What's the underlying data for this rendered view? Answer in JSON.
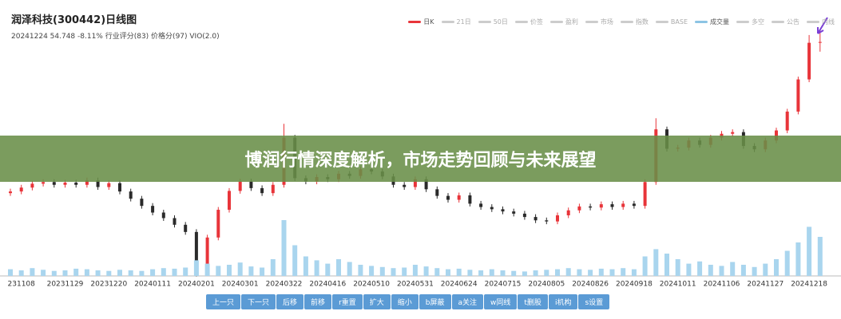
{
  "header": {
    "title": "润泽科技(300442)日线图",
    "subtitle": "20241224 54.748 -8.11% 行业评分(83) 价格分(97) VIO(2.0)"
  },
  "legend": [
    {
      "name": "日K",
      "color": "#e8353a"
    },
    {
      "name": "21日",
      "color": "#cccccc"
    },
    {
      "name": "50日",
      "color": "#cccccc"
    },
    {
      "name": "价签",
      "color": "#cccccc"
    },
    {
      "name": "盈利",
      "color": "#cccccc"
    },
    {
      "name": "市场",
      "color": "#cccccc"
    },
    {
      "name": "指数",
      "color": "#cccccc"
    },
    {
      "name": "BASE",
      "color": "#cccccc"
    },
    {
      "name": "成交量",
      "color": "#8cc4e4"
    },
    {
      "name": "多空",
      "color": "#cccccc"
    },
    {
      "name": "公告",
      "color": "#cccccc"
    },
    {
      "name": "内线",
      "color": "#cccccc"
    }
  ],
  "banner": "博润行情深度解析，市场走势回顾与未来展望",
  "toolbar": [
    "上一只",
    "下一只",
    "后移",
    "前移",
    "r重置",
    "扩大",
    "缩小",
    "b屏蔽",
    "a关注",
    "w同线",
    "t删股",
    "i机构",
    "s设置"
  ],
  "chart_data": {
    "type": "candlestick",
    "categories": [
      null,
      "231108",
      null,
      null,
      null,
      "20231129",
      null,
      null,
      null,
      "20231220",
      null,
      null,
      null,
      "20240111",
      null,
      null,
      null,
      "20240201",
      null,
      null,
      null,
      "20240301",
      null,
      null,
      null,
      "20240322",
      null,
      null,
      null,
      "20240416",
      null,
      null,
      null,
      "20240510",
      null,
      null,
      null,
      "20240531",
      null,
      null,
      null,
      "20240624",
      null,
      null,
      null,
      "20240715",
      null,
      null,
      null,
      "20240805",
      null,
      null,
      null,
      "20240826",
      null,
      null,
      null,
      "20240918",
      null,
      null,
      null,
      "20241011",
      null,
      null,
      null,
      "20241106",
      null,
      null,
      null,
      "20241127",
      null,
      null,
      null,
      "20241218",
      null
    ],
    "open": [
      27.5,
      27.8,
      28.5,
      29.2,
      29.5,
      29.0,
      29.4,
      29.0,
      29.8,
      28.6,
      29.3,
      27.8,
      26.5,
      25.2,
      24.0,
      23.0,
      21.8,
      20.5,
      14.0,
      19.5,
      24.5,
      27.9,
      29.6,
      28.4,
      27.5,
      29.0,
      37.5,
      30.2,
      29.6,
      30.4,
      30.0,
      31.0,
      30.6,
      31.8,
      31.4,
      30.5,
      29.0,
      28.6,
      30.0,
      28.2,
      27.0,
      26.3,
      27.1,
      25.6,
      25.0,
      24.6,
      24.2,
      23.8,
      23.2,
      22.6,
      22.4,
      23.5,
      24.4,
      25.1,
      24.9,
      25.5,
      25.0,
      25.6,
      25.2,
      29.5,
      39.0,
      35.5,
      35.7,
      37.0,
      36.2,
      37.5,
      38.2,
      38.5,
      36.0,
      35.4,
      37.0,
      38.8,
      42.2,
      48.0,
      54.6
    ],
    "close": [
      27.8,
      28.5,
      29.2,
      29.5,
      29.0,
      29.4,
      29.0,
      29.8,
      28.6,
      29.3,
      27.8,
      26.5,
      25.2,
      24.0,
      23.0,
      21.8,
      20.5,
      14.0,
      19.5,
      24.5,
      27.9,
      29.6,
      28.4,
      27.5,
      29.0,
      37.5,
      30.2,
      29.6,
      30.4,
      30.0,
      31.0,
      30.6,
      31.8,
      31.4,
      30.5,
      29.0,
      28.6,
      30.0,
      28.2,
      27.0,
      26.3,
      27.1,
      25.6,
      25.0,
      24.6,
      24.2,
      23.8,
      23.2,
      22.6,
      22.4,
      23.5,
      24.4,
      25.1,
      24.9,
      25.5,
      25.0,
      25.6,
      25.2,
      29.5,
      39.0,
      35.5,
      35.7,
      37.0,
      36.2,
      37.5,
      38.2,
      38.5,
      36.0,
      35.4,
      37.0,
      38.8,
      42.2,
      48.0,
      54.6,
      54.748
    ],
    "high": [
      28.3,
      29.0,
      29.7,
      30.0,
      30.0,
      29.9,
      29.9,
      30.3,
      30.3,
      29.8,
      29.8,
      28.3,
      27.0,
      25.7,
      24.5,
      23.5,
      22.3,
      21.0,
      20.0,
      25.0,
      28.4,
      30.1,
      30.1,
      28.9,
      29.5,
      40.0,
      38.0,
      30.7,
      30.9,
      30.9,
      31.5,
      31.5,
      32.3,
      32.3,
      31.9,
      31.0,
      29.5,
      30.5,
      30.5,
      28.7,
      27.5,
      27.6,
      27.6,
      26.1,
      25.5,
      25.1,
      24.7,
      24.3,
      23.7,
      23.1,
      24.0,
      24.9,
      25.6,
      25.6,
      26.0,
      26.0,
      26.1,
      26.1,
      30.0,
      41.0,
      39.5,
      36.2,
      37.5,
      37.5,
      38.0,
      38.7,
      39.0,
      39.0,
      36.5,
      37.5,
      39.3,
      42.7,
      48.5,
      56.0,
      57.0
    ],
    "low": [
      27.0,
      27.3,
      28.0,
      28.7,
      28.5,
      28.5,
      28.5,
      28.5,
      28.1,
      28.1,
      27.3,
      26.0,
      24.7,
      23.5,
      22.5,
      21.3,
      20.0,
      12.5,
      13.5,
      19.0,
      24.0,
      27.4,
      27.9,
      27.0,
      27.0,
      28.5,
      29.7,
      29.1,
      29.1,
      29.5,
      29.5,
      30.1,
      30.1,
      30.9,
      30.0,
      28.5,
      28.1,
      28.1,
      27.7,
      26.5,
      25.8,
      25.8,
      25.1,
      24.5,
      24.1,
      23.7,
      23.3,
      22.7,
      22.1,
      21.9,
      21.9,
      23.0,
      23.9,
      24.4,
      24.4,
      24.5,
      24.5,
      24.7,
      24.7,
      29.0,
      35.0,
      35.0,
      35.2,
      35.7,
      35.7,
      37.0,
      37.7,
      35.5,
      34.9,
      34.9,
      36.5,
      38.3,
      41.7,
      47.5,
      53.0
    ],
    "up_color": "#e8353a",
    "down_color": "#2b2b2b",
    "ylim": [
      12,
      58
    ],
    "volume": {
      "color": "#a9d5ee",
      "ylim": [
        0,
        100
      ],
      "values": [
        12,
        10,
        14,
        11,
        9,
        10,
        13,
        12,
        10,
        9,
        11,
        10,
        9,
        12,
        14,
        13,
        15,
        28,
        22,
        18,
        20,
        24,
        17,
        15,
        30,
        100,
        55,
        35,
        28,
        22,
        30,
        25,
        20,
        18,
        16,
        14,
        15,
        20,
        17,
        14,
        12,
        13,
        11,
        10,
        12,
        10,
        9,
        8,
        10,
        11,
        12,
        14,
        12,
        11,
        13,
        12,
        14,
        12,
        35,
        48,
        40,
        30,
        22,
        26,
        20,
        18,
        25,
        20,
        16,
        22,
        30,
        45,
        60,
        88,
        70
      ]
    }
  }
}
